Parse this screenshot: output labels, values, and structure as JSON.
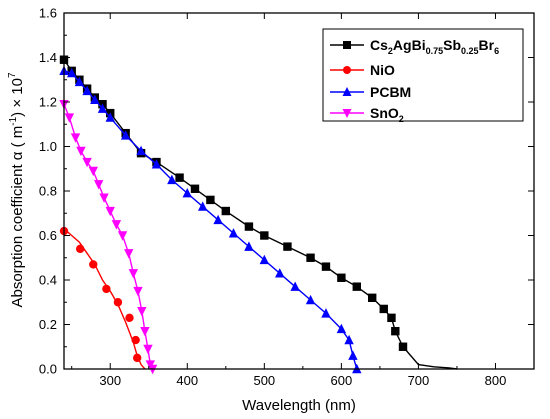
{
  "chart_data": {
    "type": "line",
    "title": "",
    "xlabel": "Wavelength (nm)",
    "ylabel": {
      "main": "Absorption coefficient α ( m",
      "sup1": "-1",
      "mid": ") × 10",
      "sup2": "7"
    },
    "xlim": [
      240,
      850
    ],
    "ylim": [
      0.0,
      1.6
    ],
    "xticks": [
      300,
      400,
      500,
      600,
      700,
      800
    ],
    "yticks": [
      0.0,
      0.2,
      0.4,
      0.6,
      0.8,
      1.0,
      1.2,
      1.4,
      1.6
    ],
    "grid": false,
    "legend_position": "top-right",
    "series": [
      {
        "name": "Cs2AgBi0.75Sb0.25Br6",
        "legend_parts": [
          {
            "t": "Cs",
            "s": "n"
          },
          {
            "t": "2",
            "s": "sub"
          },
          {
            "t": "AgBi",
            "s": "n"
          },
          {
            "t": "0.75",
            "s": "sub"
          },
          {
            "t": "Sb",
            "s": "n"
          },
          {
            "t": "0.25",
            "s": "sub"
          },
          {
            "t": "Br",
            "s": "n"
          },
          {
            "t": "6",
            "s": "sub"
          }
        ],
        "color": "#000000",
        "marker": "square",
        "x": [
          240,
          250,
          260,
          270,
          280,
          290,
          300,
          320,
          340,
          360,
          390,
          410,
          430,
          450,
          480,
          500,
          530,
          560,
          580,
          600,
          620,
          640,
          655,
          665,
          670,
          680,
          700,
          720,
          740,
          750
        ],
        "y": [
          1.39,
          1.34,
          1.3,
          1.26,
          1.22,
          1.19,
          1.15,
          1.06,
          0.97,
          0.93,
          0.86,
          0.81,
          0.76,
          0.71,
          0.64,
          0.6,
          0.55,
          0.5,
          0.46,
          0.41,
          0.37,
          0.32,
          0.27,
          0.23,
          0.17,
          0.1,
          0.02,
          0.01,
          0.005,
          0.0
        ]
      },
      {
        "name": "NiO",
        "legend_parts": [
          {
            "t": "NiO",
            "s": "n"
          }
        ],
        "color": "#ff0000",
        "marker": "circle",
        "x": [
          240,
          250,
          260,
          270,
          280,
          290,
          300,
          310,
          320,
          330,
          335,
          340,
          345
        ],
        "y": [
          0.63,
          0.6,
          0.57,
          0.52,
          0.47,
          0.4,
          0.35,
          0.29,
          0.21,
          0.12,
          0.06,
          0.02,
          0.0
        ],
        "marker_x": [
          240,
          261,
          278,
          295,
          310,
          325,
          333,
          335
        ],
        "marker_y": [
          0.62,
          0.54,
          0.47,
          0.36,
          0.3,
          0.23,
          0.13,
          0.05
        ]
      },
      {
        "name": "PCBM",
        "legend_parts": [
          {
            "t": "PCBM",
            "s": "n"
          }
        ],
        "color": "#0000ff",
        "marker": "triangle-up",
        "x": [
          240,
          250,
          260,
          270,
          280,
          290,
          300,
          320,
          340,
          360,
          380,
          400,
          420,
          440,
          460,
          480,
          500,
          520,
          540,
          560,
          580,
          600,
          610,
          615,
          620
        ],
        "y": [
          1.34,
          1.33,
          1.29,
          1.25,
          1.21,
          1.17,
          1.13,
          1.05,
          0.98,
          0.92,
          0.85,
          0.79,
          0.73,
          0.67,
          0.61,
          0.55,
          0.49,
          0.43,
          0.37,
          0.31,
          0.25,
          0.18,
          0.13,
          0.06,
          0.0
        ],
        "marker_x": [
          240,
          250,
          260,
          270,
          280,
          290,
          300,
          320,
          340,
          360,
          380,
          400,
          420,
          440,
          460,
          480,
          500,
          520,
          540,
          560,
          580,
          600,
          610,
          615,
          620
        ],
        "marker_y": [
          1.34,
          1.33,
          1.29,
          1.25,
          1.21,
          1.17,
          1.13,
          1.05,
          0.98,
          0.92,
          0.85,
          0.79,
          0.73,
          0.67,
          0.61,
          0.55,
          0.49,
          0.43,
          0.37,
          0.31,
          0.25,
          0.18,
          0.13,
          0.06,
          0.0
        ]
      },
      {
        "name": "SnO2",
        "legend_parts": [
          {
            "t": "SnO",
            "s": "n"
          },
          {
            "t": "2",
            "s": "sub"
          }
        ],
        "color": "#ff00ff",
        "marker": "triangle-down",
        "x": [
          240,
          247,
          255,
          262,
          270,
          278,
          285,
          292,
          300,
          308,
          316,
          324,
          330,
          336,
          341,
          345,
          349,
          352,
          355
        ],
        "y": [
          1.19,
          1.13,
          1.04,
          0.98,
          0.93,
          0.89,
          0.83,
          0.77,
          0.71,
          0.65,
          0.6,
          0.52,
          0.43,
          0.35,
          0.26,
          0.17,
          0.09,
          0.02,
          0.0
        ]
      }
    ]
  }
}
